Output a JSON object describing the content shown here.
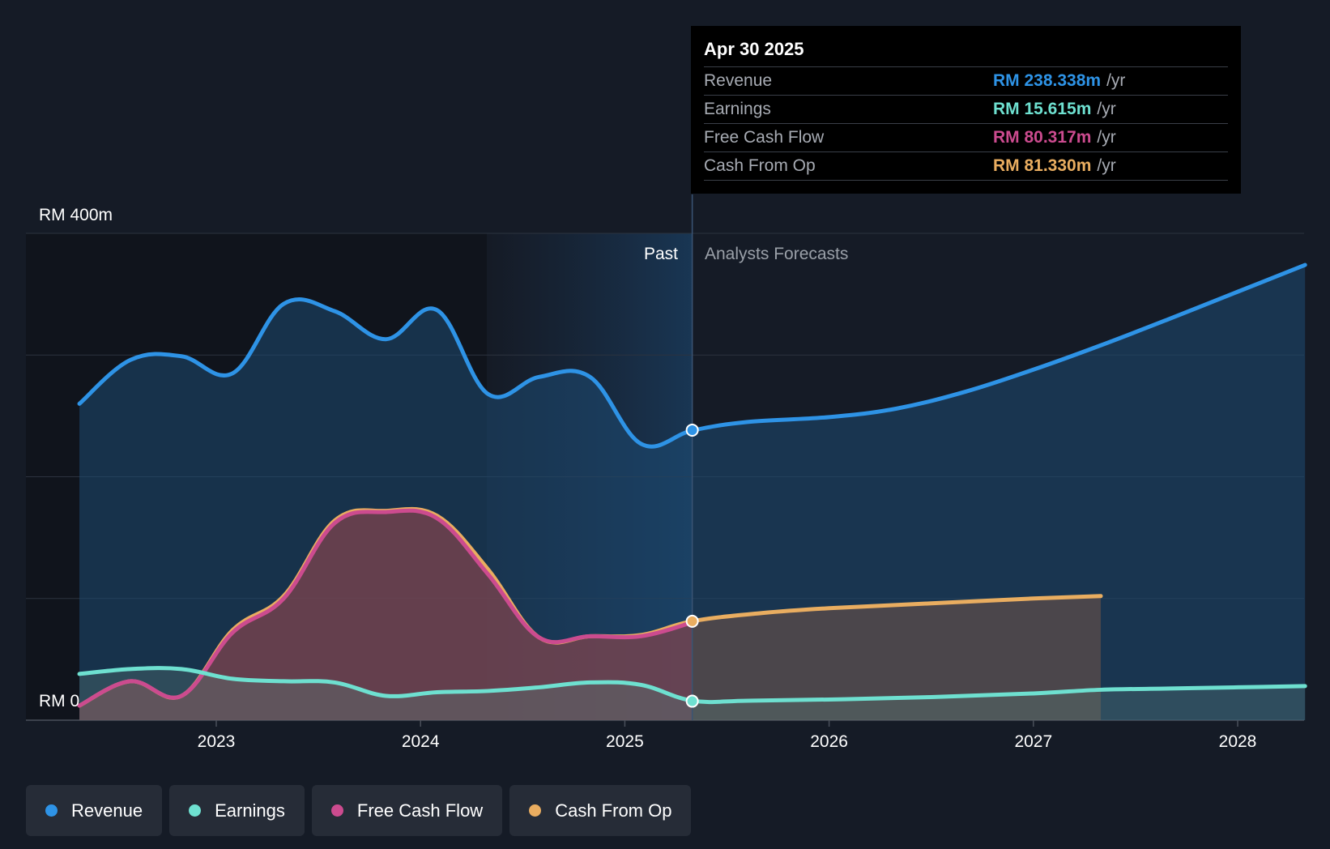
{
  "chart_data": {
    "type": "line",
    "currency": "RM",
    "y_top_label": "RM 400m",
    "y_bottom_label": "RM 0",
    "ylim": [
      0,
      400
    ],
    "xlim": [
      2022.0,
      2028.37
    ],
    "x_ticks": [
      "2023",
      "2024",
      "2025",
      "2026",
      "2027",
      "2028"
    ],
    "x_tick_values": [
      2023,
      2024,
      2025,
      2026,
      2027,
      2028
    ],
    "past_label": "Past",
    "forecast_label": "Analysts Forecasts",
    "divider_x": 2025.33,
    "shaded_start_x": 2024.33,
    "series": [
      {
        "name": "Revenue",
        "color": "#2e93e6",
        "x": [
          2022.33,
          2022.58,
          2022.83,
          2023.08,
          2023.33,
          2023.58,
          2023.83,
          2024.08,
          2024.33,
          2024.58,
          2024.83,
          2025.08,
          2025.33,
          2025.6,
          2026.0,
          2026.33,
          2026.67,
          2027.0,
          2027.33,
          2027.67,
          2028.0,
          2028.33
        ],
        "values": [
          260,
          296,
          299,
          285,
          342,
          336,
          313,
          337,
          268,
          282,
          282,
          227,
          238,
          245,
          249,
          256,
          270,
          288,
          308,
          330,
          352,
          374
        ]
      },
      {
        "name": "Earnings",
        "color": "#6ee0d0",
        "x": [
          2022.33,
          2022.58,
          2022.83,
          2023.08,
          2023.33,
          2023.58,
          2023.83,
          2024.08,
          2024.33,
          2024.58,
          2024.83,
          2025.08,
          2025.33,
          2025.6,
          2026.0,
          2026.5,
          2027.0,
          2027.33,
          2027.67,
          2028.0,
          2028.33
        ],
        "values": [
          38,
          42,
          42,
          34,
          32,
          31,
          20,
          23,
          24,
          27,
          31,
          29,
          16,
          16,
          17,
          19,
          22,
          25,
          26,
          27,
          28
        ]
      },
      {
        "name": "Free Cash Flow",
        "color": "#cc4b8f",
        "x": [
          2022.33,
          2022.58,
          2022.83,
          2023.08,
          2023.33,
          2023.58,
          2023.83,
          2024.08,
          2024.33,
          2024.58,
          2024.83,
          2025.08,
          2025.33
        ],
        "values": [
          12,
          32,
          20,
          72,
          100,
          162,
          171,
          166,
          120,
          68,
          69,
          69,
          80.3
        ]
      },
      {
        "name": "Cash From Op",
        "color": "#e9ad60",
        "x": [
          2022.33,
          2022.58,
          2022.83,
          2023.08,
          2023.33,
          2023.58,
          2023.83,
          2024.08,
          2024.33,
          2024.58,
          2024.83,
          2025.08,
          2025.33,
          2025.67,
          2026.0,
          2026.5,
          2027.0,
          2027.33
        ],
        "values": [
          12,
          32,
          20,
          74,
          102,
          164,
          172,
          168,
          124,
          68,
          69,
          70,
          81.3,
          88,
          92,
          96,
          100,
          102
        ]
      }
    ],
    "highlight": {
      "date": "Apr 30 2025",
      "x": 2025.33,
      "rows": [
        {
          "label": "Revenue",
          "value": "RM 238.338m",
          "unit": "/yr",
          "color": "#2e93e6",
          "y": 238.3
        },
        {
          "label": "Earnings",
          "value": "RM 15.615m",
          "unit": "/yr",
          "color": "#6ee0d0",
          "y": 15.6
        },
        {
          "label": "Free Cash Flow",
          "value": "RM 80.317m",
          "unit": "/yr",
          "color": "#cc4b8f",
          "y": 80.3
        },
        {
          "label": "Cash From Op",
          "value": "RM 81.330m",
          "unit": "/yr",
          "color": "#e9ad60",
          "y": 81.3
        }
      ]
    },
    "legend": [
      {
        "label": "Revenue",
        "color": "#2e93e6"
      },
      {
        "label": "Earnings",
        "color": "#6ee0d0"
      },
      {
        "label": "Free Cash Flow",
        "color": "#cc4b8f"
      },
      {
        "label": "Cash From Op",
        "color": "#e9ad60"
      }
    ]
  }
}
